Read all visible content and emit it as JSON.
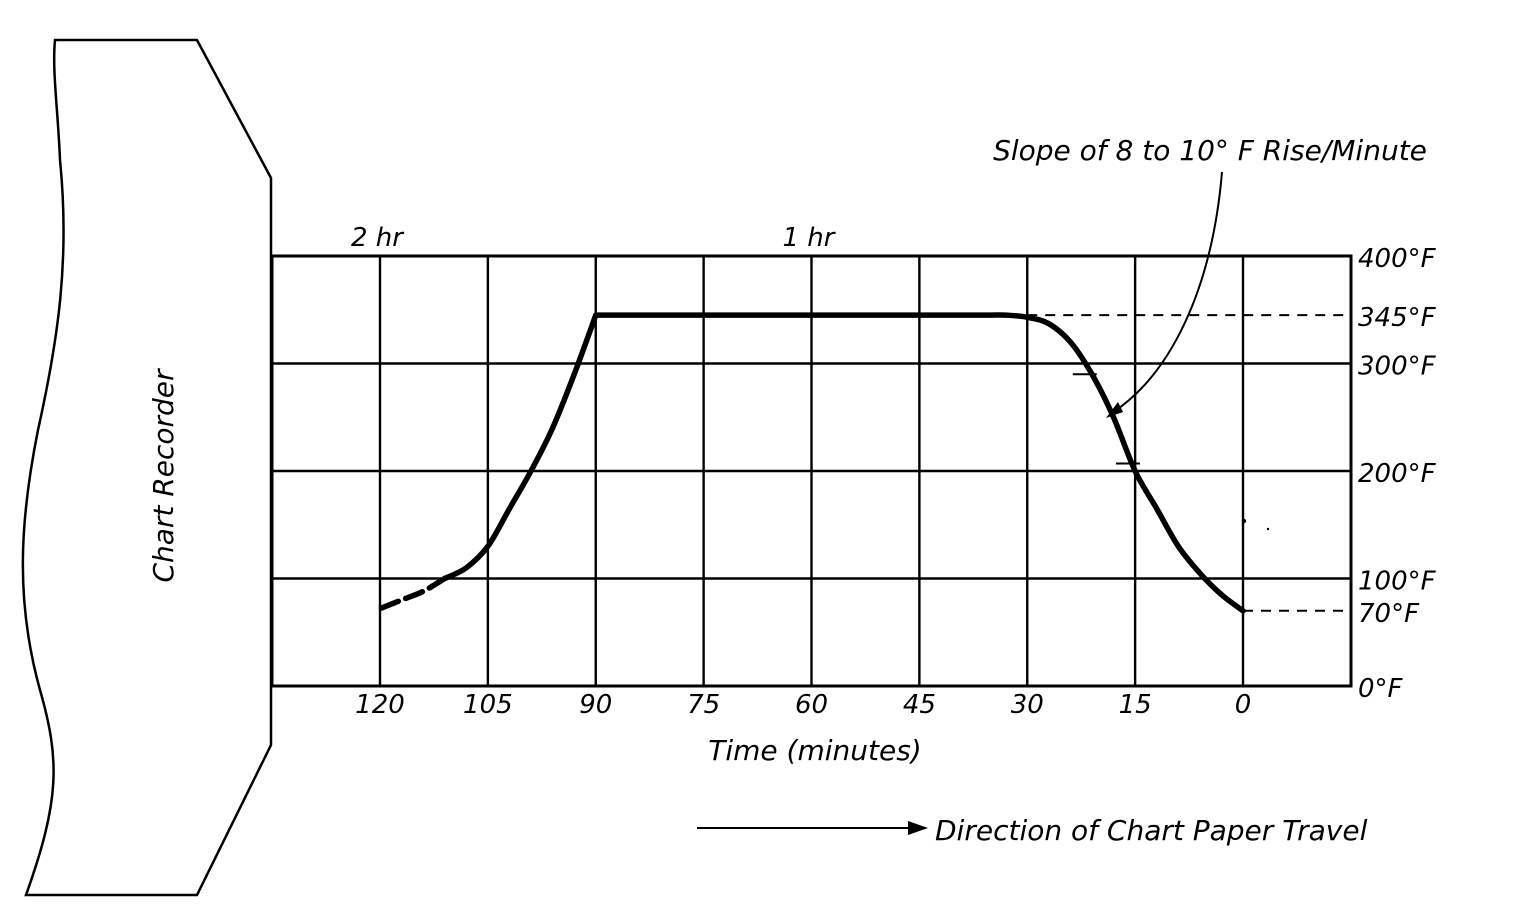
{
  "recorder_label": "Chart Recorder",
  "slope_note": "Slope of 8 to 10° F Rise/Minute",
  "direction_note": "Direction of Chart Paper Travel",
  "chart_data": {
    "type": "line",
    "title": "",
    "xlabel": "Time (minutes)",
    "ylabel": "",
    "x_reversed": true,
    "xlim": [
      0,
      135
    ],
    "ylim": [
      0,
      400
    ],
    "x_ticks": [
      120,
      105,
      90,
      75,
      60,
      45,
      30,
      15,
      0
    ],
    "x_tick_labels": [
      "120",
      "105",
      "90",
      "75",
      "60",
      "45",
      "30",
      "15",
      "0"
    ],
    "y_ticks": [
      0,
      70,
      100,
      200,
      300,
      345,
      400
    ],
    "y_tick_labels": [
      "0°F",
      "70°F",
      "100°F",
      "200°F",
      "300°F",
      "345°F",
      "400°F"
    ],
    "hour_marks": [
      {
        "x": 120,
        "label": "2 hr"
      },
      {
        "x": 60,
        "label": "1 hr"
      }
    ],
    "grid": true,
    "series": [
      {
        "style": "solid",
        "x": [
          0,
          3,
          6,
          9,
          12,
          15,
          18,
          21,
          24,
          27,
          30,
          33,
          36,
          45,
          60,
          75,
          90
        ],
        "y": [
          70,
          85,
          105,
          130,
          165,
          200,
          250,
          290,
          320,
          337,
          343,
          345,
          345,
          345,
          345,
          345,
          345
        ]
      },
      {
        "style": "solid",
        "x": [
          90,
          93,
          96,
          99,
          102,
          105,
          108,
          111
        ],
        "y": [
          345,
          290,
          240,
          200,
          165,
          130,
          110,
          100
        ]
      },
      {
        "style": "dashed",
        "x": [
          111,
          114,
          117,
          120
        ],
        "y": [
          100,
          88,
          80,
          72
        ]
      }
    ],
    "reference_lines": [
      {
        "y": 345,
        "x_from": 30,
        "x_to": -15,
        "style": "dashed"
      },
      {
        "y": 70,
        "x_from": 0,
        "x_to": -15,
        "style": "dashed"
      }
    ],
    "slope_marks": [
      {
        "x": 22,
        "y": 290
      },
      {
        "x": 16,
        "y": 207
      }
    ]
  }
}
